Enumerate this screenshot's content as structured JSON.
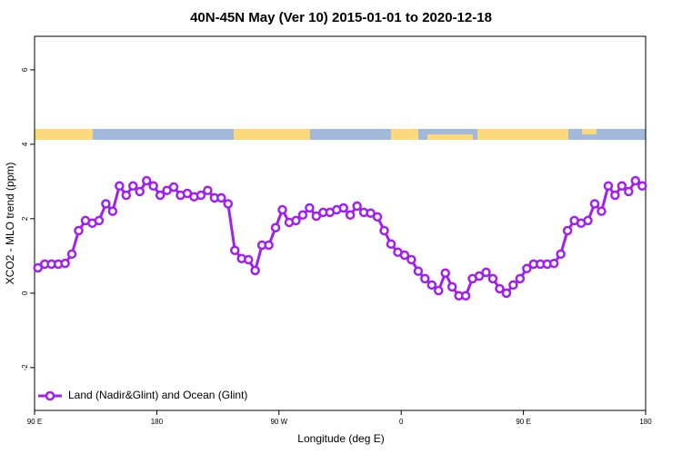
{
  "chart_data": {
    "type": "line",
    "title": "40N-45N May (Ver 10)   2015-01-01 to 2020-12-18",
    "x_label": "Longitude (deg E)",
    "y_label": "XCO2 - MLO trend (ppm)",
    "x": [
      92.5,
      97.5,
      102.5,
      107.5,
      112.5,
      117.5,
      122.5,
      127.5,
      132.5,
      137.5,
      142.5,
      147.5,
      152.5,
      157.5,
      162.5,
      167.5,
      172.5,
      177.5,
      182.5,
      187.5,
      192.5,
      197.5,
      202.5,
      207.5,
      212.5,
      217.5,
      222.5,
      227.5,
      232.5,
      237.5,
      242.5,
      247.5,
      252.5,
      257.5,
      262.5,
      267.5,
      272.5,
      277.5,
      282.5,
      287.5,
      292.5,
      297.5,
      302.5,
      307.5,
      312.5,
      317.5,
      322.5,
      327.5,
      332.5,
      337.5,
      342.5,
      347.5,
      352.5,
      357.5,
      362.5,
      367.5,
      372.5,
      377.5,
      382.5,
      387.5,
      392.5,
      397.5,
      402.5,
      407.5,
      412.5,
      417.5,
      422.5,
      427.5,
      432.5,
      437.5,
      442.5,
      447.5,
      452.5,
      457.5,
      462.5,
      467.5,
      472.5,
      477.5,
      482.5,
      487.5,
      492.5,
      497.5,
      502.5,
      507.5,
      512.5,
      517.5,
      522.5,
      527.5,
      532.5,
      537.5
    ],
    "series": [
      {
        "name": "Land (Nadir&Glint) and Ocean (Glint)",
        "color": "#a020f0",
        "values": [
          0.68,
          0.78,
          0.78,
          0.78,
          0.8,
          1.05,
          1.68,
          1.95,
          1.88,
          1.95,
          2.4,
          2.2,
          2.88,
          2.63,
          2.88,
          2.73,
          3.02,
          2.88,
          2.63,
          2.76,
          2.85,
          2.63,
          2.68,
          2.59,
          2.63,
          2.76,
          2.56,
          2.56,
          2.4,
          1.15,
          0.93,
          0.9,
          0.61,
          1.29,
          1.29,
          1.76,
          2.24,
          1.9,
          1.95,
          2.1,
          2.29,
          2.07,
          2.17,
          2.17,
          2.24,
          2.29,
          2.1,
          2.34,
          2.17,
          2.15,
          2.05,
          1.68,
          1.32,
          1.1,
          1.02,
          0.9,
          0.59,
          0.39,
          0.22,
          0.07,
          0.54,
          0.17,
          -0.07,
          -0.07,
          0.39,
          0.46,
          0.56,
          0.39,
          0.12,
          0,
          0.22,
          0.39,
          0.66,
          0.78,
          0.78,
          0.78,
          0.8,
          1.05,
          1.68,
          1.95,
          1.88,
          1.95,
          2.4,
          2.2,
          2.88,
          2.63,
          2.88,
          2.73,
          3.02,
          2.88
        ]
      }
    ],
    "xlim": [
      90,
      540
    ],
    "xticks": [
      {
        "value": 90,
        "label": "90 E"
      },
      180,
      {
        "value": 270,
        "label": "90 W"
      },
      {
        "value": 360,
        "label": "0"
      },
      {
        "value": 450,
        "label": "90 E"
      },
      {
        "value": 540,
        "label": "180"
      }
    ],
    "ylim": [
      -3.15,
      6.9
    ],
    "yticks": [
      -2,
      0,
      2,
      4,
      6
    ],
    "legend": "bottomleft",
    "grid": false
  }
}
